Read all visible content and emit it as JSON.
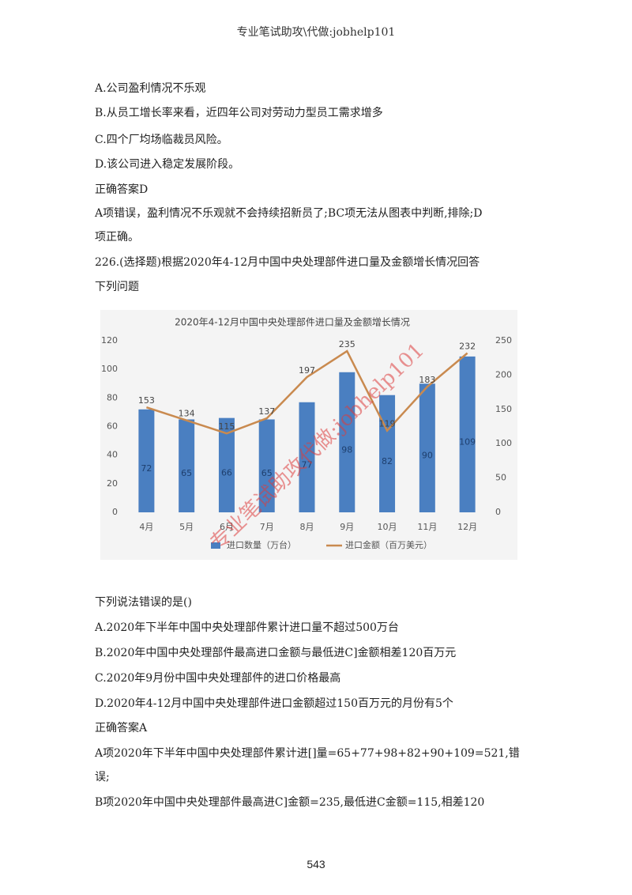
{
  "header": "专业笔试助攻\\代做:jobhelp101",
  "lines_top": [
    "A.公司盈利情况不乐观",
    "B.从员工增长率来看，近四年公司对劳动力型员工需求增多",
    "C.四个厂均场临裁员风险。",
    "D.该公司进入稳定发展阶段。",
    "正确答案D",
    "A项错误，盈利情况不乐观就不会持续招新员了;BC项无法从图表中判断,排除;D",
    "项正确。",
    "226.(选择题)根据2020年4-12月中国中央处理部件进口量及金额增长情况回答",
    "下列问题"
  ],
  "chart_data": {
    "type": "bar-line",
    "title": "2020年4-12月中国中央处理部件进口量及金额增长情况",
    "categories": [
      "4月",
      "5月",
      "6月",
      "7月",
      "8月",
      "9月",
      "10月",
      "11月",
      "12月"
    ],
    "series": [
      {
        "name": "进口数量（万台）",
        "type": "bar",
        "color": "#4a7fc1",
        "values": [
          72,
          65,
          66,
          65,
          77,
          98,
          82,
          90,
          109
        ]
      },
      {
        "name": "进口金额（百万美元）",
        "type": "line",
        "axis": "y2",
        "color": "#c98a4f",
        "values": [
          153,
          134,
          115,
          137,
          197,
          235,
          119,
          183,
          232
        ]
      }
    ],
    "ylim": [
      0,
      120
    ],
    "yticks": [
      0,
      20,
      40,
      60,
      80,
      100,
      120
    ],
    "y2lim": [
      0,
      250
    ],
    "y2ticks": [
      0,
      50,
      100,
      150,
      200,
      250
    ]
  },
  "lines_bottom": [
    "下列说法错误的是()",
    "A.2020年下半年中国中央处理部件累计进口量不超过500万台",
    "B.2020年中国中央处理部件最高进口金额与最低进C]金额相差120百万元",
    "C.2020年9月份中国中央处理部件的进口价格最高",
    "D.2020年4-12月中国中央处理部件进口金额超过150百万元的月份有5个",
    "正确答案A",
    "A项2020年下半年中国中央处理部件累计进[]量=65+77+98+82+90+109=521,错",
    "误;",
    "B项2020年中国中央处理部件最高进C]金额=235,最低进C金额=115,相差120"
  ],
  "watermark": "专业笔试助攻代做:jobhelp101",
  "page_number": 543
}
